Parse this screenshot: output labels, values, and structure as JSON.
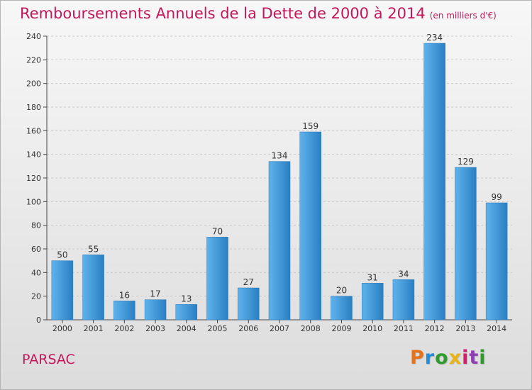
{
  "title": "Remboursements Annuels de la Dette de 2000 à 2014",
  "unit": "(en milliers d'€)",
  "place": "PARSAC",
  "brand": "Proxiti",
  "brand_colors": [
    "#e6731a",
    "#1f8ed8",
    "#2d9c2d",
    "#e8b41c",
    "#d81b6a",
    "#8e3fb0",
    "#2d9c2d"
  ],
  "colors": {
    "bar_light": "#5fb3ec",
    "bar_dark": "#2a7fc3",
    "title": "#c2185b",
    "axis": "#444444"
  },
  "chart_data": {
    "type": "bar",
    "title": "Remboursements Annuels de la Dette de 2000 à 2014",
    "xlabel": "",
    "ylabel": "",
    "categories": [
      "2000",
      "2001",
      "2002",
      "2003",
      "2004",
      "2005",
      "2006",
      "2007",
      "2008",
      "2009",
      "2010",
      "2011",
      "2012",
      "2013",
      "2014"
    ],
    "values": [
      50,
      55,
      16,
      17,
      13,
      70,
      27,
      134,
      159,
      20,
      31,
      34,
      234,
      129,
      99
    ],
    "ylim": [
      0,
      240
    ],
    "yticks": [
      0,
      20,
      40,
      60,
      80,
      100,
      120,
      140,
      160,
      180,
      200,
      220,
      240
    ],
    "grid": true,
    "data_labels": true
  }
}
